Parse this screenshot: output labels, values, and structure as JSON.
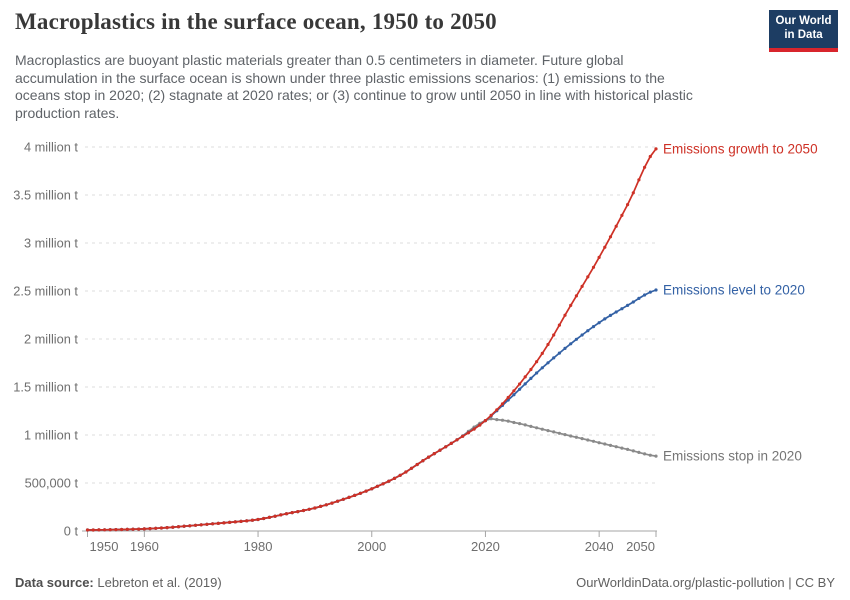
{
  "header": {
    "title": "Macroplastics in the surface ocean, 1950 to 2050",
    "subtitle_lines": [
      "Macroplastics are buoyant plastic materials greater than 0.5 centimeters in diameter. Future global",
      "accumulation in the surface ocean is shown under three plastic emissions scenarios: (1) emissions to the",
      "oceans stop in 2020; (2) stagnate at 2020 rates; or (3) continue to grow until 2050 in line with historical plastic",
      "production rates."
    ],
    "logo": {
      "line1": "Our World",
      "line2": "in Data",
      "bg_color": "#1d3d63",
      "bar_color": "#d8252c"
    }
  },
  "footer": {
    "datasource_label": "Data source:",
    "datasource_value": " Lebreton et al. (2019)",
    "right_text": "OurWorldinData.org/plastic-pollution | CC BY"
  },
  "chart_data": {
    "type": "line",
    "title": "Macroplastics in the surface ocean, 1950 to 2050",
    "xlabel": "",
    "ylabel": "",
    "unit": "tonnes",
    "xlim": [
      1949,
      2053
    ],
    "ylim": [
      0,
      4000000
    ],
    "grid": "horizontal dashed",
    "legend_position": "line-end labels",
    "grid_color": "#dcdcdc",
    "axis_color": "#a5a5a5",
    "tick_label_color": "#6e6e6e",
    "y_ticks": [
      {
        "value": 0,
        "label": "0 t"
      },
      {
        "value": 0.5,
        "label": "500,000 t"
      },
      {
        "value": 1,
        "label": "1 million t"
      },
      {
        "value": 1.5,
        "label": "1.5 million t"
      },
      {
        "value": 2,
        "label": "2 million t"
      },
      {
        "value": 2.5,
        "label": "2.5 million t"
      },
      {
        "value": 3,
        "label": "3 million t"
      },
      {
        "value": 3.5,
        "label": "3.5 million t"
      },
      {
        "value": 4,
        "label": "4 million t"
      }
    ],
    "x_ticks": [
      {
        "year": 1950,
        "label": "1950"
      },
      {
        "year": 1960,
        "label": "1960"
      },
      {
        "year": 1980,
        "label": "1980"
      },
      {
        "year": 2000,
        "label": "2000"
      },
      {
        "year": 2020,
        "label": "2020"
      },
      {
        "year": 2040,
        "label": "2040"
      },
      {
        "year": 2050,
        "label": "2050"
      }
    ],
    "value_unit_note": "values in million tonnes",
    "series": [
      {
        "name": "Emissions stop in 2020",
        "color": "#8a8a8a",
        "label_color": "#757575",
        "points": [
          [
            1950,
            0.01
          ],
          [
            1955,
            0.015
          ],
          [
            1960,
            0.022
          ],
          [
            1965,
            0.04
          ],
          [
            1970,
            0.065
          ],
          [
            1975,
            0.09
          ],
          [
            1980,
            0.12
          ],
          [
            1985,
            0.18
          ],
          [
            1990,
            0.24
          ],
          [
            1995,
            0.33
          ],
          [
            2000,
            0.44
          ],
          [
            2005,
            0.58
          ],
          [
            2010,
            0.77
          ],
          [
            2015,
            0.95
          ],
          [
            2020,
            1.15
          ],
          [
            2022,
            1.16
          ],
          [
            2025,
            1.13
          ],
          [
            2030,
            1.06
          ],
          [
            2035,
            0.99
          ],
          [
            2040,
            0.92
          ],
          [
            2045,
            0.85
          ],
          [
            2050,
            0.78
          ]
        ]
      },
      {
        "name": "Emissions level to 2020",
        "color": "#3361a5",
        "label_color": "#3361a5",
        "points": [
          [
            1950,
            0.01
          ],
          [
            1955,
            0.015
          ],
          [
            1960,
            0.022
          ],
          [
            1965,
            0.04
          ],
          [
            1970,
            0.065
          ],
          [
            1975,
            0.09
          ],
          [
            1980,
            0.12
          ],
          [
            1985,
            0.18
          ],
          [
            1990,
            0.24
          ],
          [
            1995,
            0.33
          ],
          [
            2000,
            0.44
          ],
          [
            2005,
            0.58
          ],
          [
            2010,
            0.77
          ],
          [
            2015,
            0.95
          ],
          [
            2020,
            1.15
          ],
          [
            2025,
            1.42
          ],
          [
            2030,
            1.7
          ],
          [
            2035,
            1.95
          ],
          [
            2040,
            2.17
          ],
          [
            2045,
            2.35
          ],
          [
            2050,
            2.51
          ]
        ]
      },
      {
        "name": "Emissions growth to 2050",
        "color": "#ce3126",
        "label_color": "#ce3126",
        "points": [
          [
            1950,
            0.01
          ],
          [
            1955,
            0.015
          ],
          [
            1960,
            0.022
          ],
          [
            1965,
            0.04
          ],
          [
            1970,
            0.065
          ],
          [
            1975,
            0.09
          ],
          [
            1980,
            0.12
          ],
          [
            1985,
            0.18
          ],
          [
            1990,
            0.24
          ],
          [
            1995,
            0.33
          ],
          [
            2000,
            0.44
          ],
          [
            2005,
            0.58
          ],
          [
            2010,
            0.77
          ],
          [
            2015,
            0.95
          ],
          [
            2020,
            1.15
          ],
          [
            2025,
            1.46
          ],
          [
            2030,
            1.85
          ],
          [
            2035,
            2.35
          ],
          [
            2040,
            2.85
          ],
          [
            2045,
            3.4
          ],
          [
            2050,
            3.98
          ]
        ]
      }
    ]
  }
}
